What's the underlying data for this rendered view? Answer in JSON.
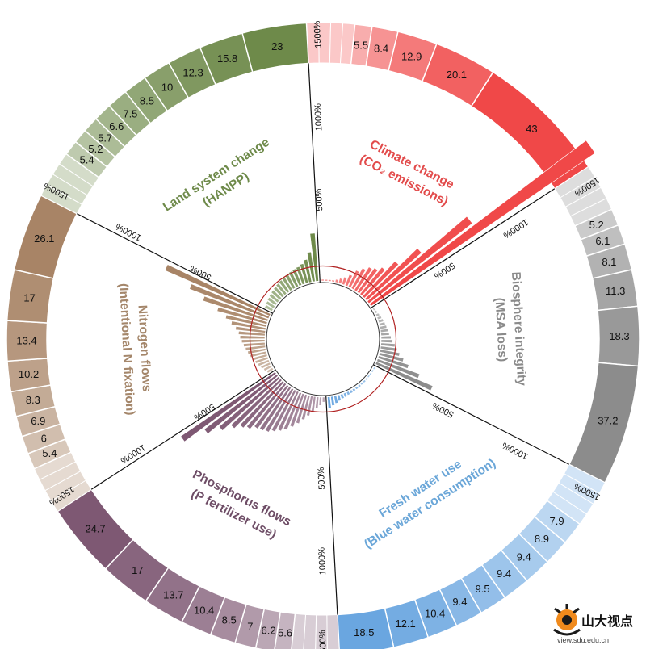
{
  "chart_data": {
    "type": "radial-bar",
    "axis_labels": [
      "500%",
      "1000%",
      "1500%"
    ],
    "sectors": [
      {
        "key": "climate",
        "title_line1": "Climate change",
        "title_line2": "(CO₂ emissions)",
        "color": "#f04848",
        "text_color": "#e24b4b",
        "ring_values": [
          "5.5",
          "8.4",
          "12.9",
          "20.1",
          "43"
        ],
        "inner_bars": [
          6,
          10,
          14,
          20,
          28,
          40,
          55,
          80,
          120,
          150,
          175,
          190,
          220,
          300,
          450,
          800,
          1650
        ]
      },
      {
        "key": "biosphere",
        "title_line1": "Biosphere integrity",
        "title_line2": "(MSA loss)",
        "color": "#8c8c8c",
        "text_color": "#8a8a8a",
        "ring_values": [
          "5.2",
          "6.1",
          "8.1",
          "11.3",
          "18.3",
          "37.2"
        ],
        "inner_bars": [
          20,
          25,
          30,
          35,
          40,
          45,
          50,
          55,
          60,
          70,
          80,
          95,
          110,
          130,
          160,
          200,
          280,
          380
        ]
      },
      {
        "key": "water",
        "title_line1": "Fresh water use",
        "title_line2": "(Blue water consumption)",
        "color": "#6aa6e0",
        "text_color": "#6aa6d8",
        "ring_values": [
          "7.9",
          "8.9",
          "9.4",
          "9.4",
          "9.5",
          "9.4",
          "10.4",
          "12.1",
          "18.5"
        ],
        "inner_bars": [
          8,
          10,
          14,
          18,
          20,
          22,
          22,
          24,
          24,
          26,
          28,
          30,
          34,
          38,
          45,
          55,
          65,
          80
        ]
      },
      {
        "key": "phosphorus",
        "title_line1": "Phosphorus flows",
        "title_line2": "(P fertilizer use)",
        "color": "#7e5873",
        "text_color": "#6e4d66",
        "ring_values": [
          "5.6",
          "6.2",
          "7",
          "8.5",
          "10.4",
          "13.7",
          "17",
          "24.7"
        ],
        "inner_bars": [
          40,
          60,
          80,
          100,
          130,
          160,
          190,
          220,
          250,
          270,
          290,
          310,
          320,
          330,
          360,
          380,
          420,
          480,
          560,
          700
        ]
      },
      {
        "key": "nitrogen",
        "title_line1": "Nitrogen flows",
        "title_line2": "(Intentional N fixation)",
        "color": "#a88466",
        "text_color": "#a4866a",
        "ring_values": [
          "5.4",
          "6",
          "6.9",
          "8.3",
          "10.2",
          "13.4",
          "17",
          "26.1"
        ],
        "inner_bars": [
          50,
          60,
          70,
          80,
          90,
          100,
          110,
          120,
          130,
          140,
          150,
          160,
          170,
          190,
          220,
          260,
          320,
          420,
          520,
          700
        ]
      },
      {
        "key": "land",
        "title_line1": "Land system change",
        "title_line2": "(HANPP)",
        "color": "#6e8a4a",
        "text_color": "#6e8a4a",
        "ring_values": [
          "5.4",
          "5.2",
          "5.7",
          "6.6",
          "7.5",
          "8.5",
          "10",
          "12.3",
          "15.8",
          "23"
        ],
        "inner_bars": [
          60,
          65,
          70,
          75,
          80,
          85,
          90,
          95,
          100,
          105,
          110,
          115,
          120,
          130,
          150,
          190,
          300
        ]
      }
    ]
  },
  "logo": {
    "name": "山大视点",
    "url": "view.sdu.edu.cn"
  }
}
